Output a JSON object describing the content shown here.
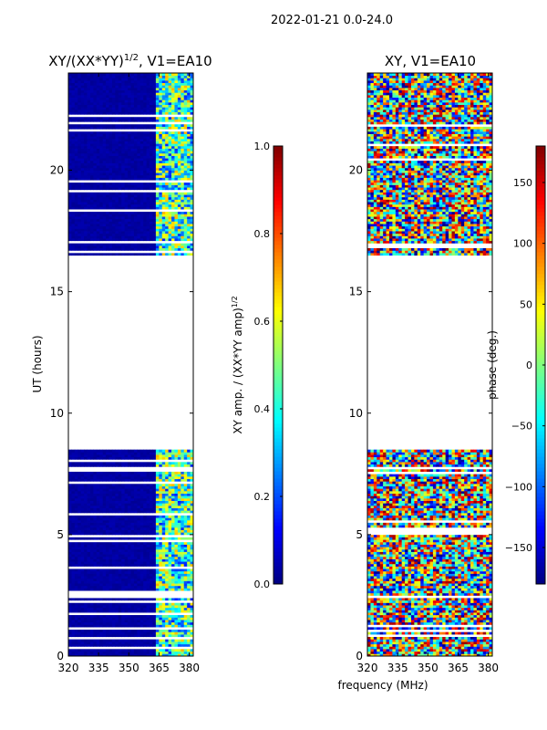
{
  "figure_title": "2022-01-21 0.0-24.0",
  "colors": {
    "jet": [
      "#00007f",
      "#0000ff",
      "#007fff",
      "#00ffff",
      "#7fff7f",
      "#ffff00",
      "#ff7f00",
      "#ff0000",
      "#7f0000"
    ],
    "gap": "#ffffff",
    "axis": "#000000"
  },
  "chart_data": [
    {
      "type": "heatmap",
      "title": "XY/(XX*YY)",
      "title_superscript": "1/2",
      "title_suffix": ", V1=EA10",
      "xlabel": "",
      "ylabel": "UT (hours)",
      "xlim": [
        320,
        382
      ],
      "ylim": [
        0,
        24
      ],
      "xticks": [
        320,
        335,
        350,
        365,
        380
      ],
      "yticks": [
        0,
        5,
        10,
        15,
        20
      ],
      "data_coverage_hours": [
        [
          0.0,
          8.5
        ],
        [
          16.5,
          24.0
        ]
      ],
      "colorbar": {
        "label": "XY amp. / (XX*YY amp)",
        "label_superscript": "1/2",
        "range": [
          0.0,
          1.0
        ],
        "ticks": [
          "0.0",
          "0.2",
          "0.4",
          "0.6",
          "0.8",
          "1.0"
        ]
      }
    },
    {
      "type": "heatmap",
      "title": "XY, V1=EA10",
      "xlabel": "frequency (MHz)",
      "ylabel": "",
      "xlim": [
        320,
        382
      ],
      "ylim": [
        0,
        24
      ],
      "xticks": [
        320,
        335,
        350,
        365,
        380
      ],
      "yticks": [
        0,
        5,
        10,
        15,
        20
      ],
      "data_coverage_hours": [
        [
          0.0,
          8.5
        ],
        [
          16.5,
          24.0
        ]
      ],
      "colorbar": {
        "label": "phase (deg.)",
        "range": [
          -180,
          180
        ],
        "ticks": [
          "−150",
          "−100",
          "−50",
          "0",
          "50",
          "100",
          "150"
        ]
      }
    }
  ]
}
